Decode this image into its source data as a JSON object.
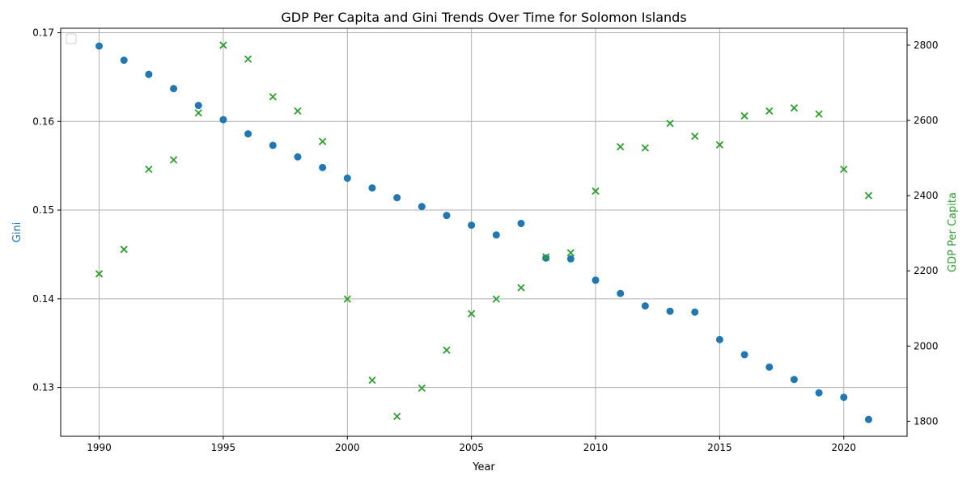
{
  "chart_data": {
    "type": "scatter",
    "title": "GDP Per Capita and Gini Trends Over Time for Solomon Islands",
    "xlabel": "Year",
    "ylabel_left": "Gini",
    "ylabel_right": "GDP Per Capita",
    "xlim": [
      1988.45,
      2022.55
    ],
    "ylim_left": [
      0.1245,
      0.1705
    ],
    "ylim_right": [
      1760,
      2845
    ],
    "x_ticks": [
      1990,
      1995,
      2000,
      2005,
      2010,
      2015,
      2020
    ],
    "y_ticks_left": [
      0.13,
      0.14,
      0.15,
      0.16,
      0.17
    ],
    "y_ticks_left_labels": [
      "0.13",
      "0.14",
      "0.15",
      "0.16",
      "0.17"
    ],
    "y_ticks_right": [
      1800,
      2000,
      2200,
      2400,
      2600,
      2800
    ],
    "grid": true,
    "legend": "top-left (empty)",
    "colors": {
      "gini": "#1f77b4",
      "gdp": "#2ca02c"
    },
    "series": [
      {
        "key": "gini",
        "axis": "left",
        "marker": "circle",
        "x": [
          1990,
          1991,
          1992,
          1993,
          1994,
          1995,
          1996,
          1997,
          1998,
          1999,
          2000,
          2001,
          2002,
          2003,
          2004,
          2005,
          2006,
          2007,
          2008,
          2009,
          2010,
          2011,
          2012,
          2013,
          2014,
          2015,
          2016,
          2017,
          2018,
          2019,
          2020,
          2021
        ],
        "values": [
          0.1685,
          0.1669,
          0.1653,
          0.1637,
          0.1618,
          0.1602,
          0.1586,
          0.1573,
          0.156,
          0.1548,
          0.1536,
          0.1525,
          0.1514,
          0.1504,
          0.1494,
          0.1483,
          0.1472,
          0.1485,
          0.1446,
          0.1445,
          0.1421,
          0.1406,
          0.1392,
          0.1386,
          0.1385,
          0.1354,
          0.1337,
          0.1323,
          0.1309,
          0.1294,
          0.1289,
          0.1264
        ]
      },
      {
        "key": "gdp",
        "axis": "right",
        "marker": "x",
        "x": [
          1990,
          1991,
          1992,
          1993,
          1994,
          1995,
          1996,
          1997,
          1998,
          1999,
          2000,
          2001,
          2002,
          2003,
          2004,
          2005,
          2006,
          2007,
          2008,
          2009,
          2010,
          2011,
          2012,
          2013,
          2014,
          2015,
          2016,
          2017,
          2018,
          2019,
          2020,
          2021
        ],
        "values": [
          2192,
          2257,
          2470,
          2495,
          2620,
          2800,
          2763,
          2663,
          2625,
          2544,
          2125,
          1909,
          1813,
          1888,
          1989,
          2086,
          2125,
          2155,
          2237,
          2248,
          2412,
          2530,
          2527,
          2592,
          2558,
          2535,
          2612,
          2625,
          2633,
          2617,
          2470,
          2400
        ]
      }
    ]
  }
}
